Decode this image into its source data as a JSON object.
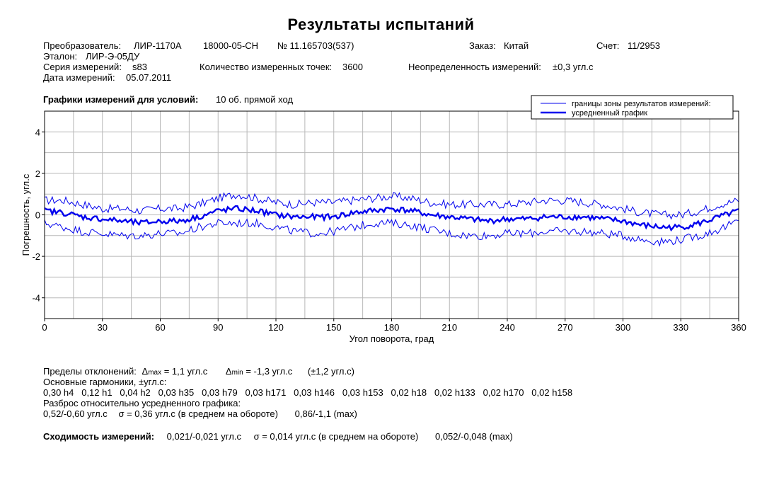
{
  "header": {
    "title": "Результаты испытаний",
    "converter_label": "Преобразователь:",
    "converter_model": "ЛИР-1170А",
    "converter_code": "18000-05-СН",
    "converter_number": "№ 11.165703(537)",
    "order_label": "Заказ:",
    "order_value": "Китай",
    "account_label": "Счет:",
    "account_value": "11/2953",
    "reference_label": "Эталон:",
    "reference_value": "ЛИР-Э-05ДУ",
    "series_label": "Серия измерений:",
    "series_value": "s83",
    "points_label": "Количество измеренных точек:",
    "points_value": "3600",
    "uncertainty_label": "Неопределенность измерений:",
    "uncertainty_value": "±0,3 угл.с",
    "date_label": "Дата измерений:",
    "date_value": "05.07.2011"
  },
  "conditions": {
    "label": "Графики измерений для условий:",
    "value": "10 об. прямой ход"
  },
  "chart_data": {
    "type": "line",
    "xlabel": "Угол поворота, град",
    "ylabel": "Погрешность, угл.с",
    "xlim": [
      0,
      360
    ],
    "ylim": [
      -5,
      5
    ],
    "xticks": [
      0,
      30,
      60,
      90,
      120,
      150,
      180,
      210,
      240,
      270,
      300,
      330,
      360
    ],
    "yticks": [
      4,
      2,
      0,
      -2,
      -4
    ],
    "grid": true,
    "legend_position": "top-right",
    "x": [
      0,
      10,
      20,
      30,
      40,
      50,
      60,
      70,
      80,
      90,
      100,
      110,
      120,
      130,
      140,
      150,
      160,
      170,
      180,
      190,
      200,
      210,
      220,
      230,
      240,
      250,
      260,
      270,
      280,
      290,
      300,
      310,
      320,
      330,
      340,
      350,
      360
    ],
    "series": [
      {
        "name": "границы зоны результатов измерений:",
        "style": "thin",
        "values": [
          0.7,
          0.7,
          0.5,
          0.3,
          0.3,
          0.2,
          0.3,
          0.3,
          0.5,
          0.8,
          1.0,
          0.8,
          0.6,
          0.5,
          0.6,
          0.6,
          0.7,
          0.8,
          0.9,
          0.8,
          0.6,
          0.5,
          0.5,
          0.5,
          0.5,
          0.6,
          0.7,
          0.7,
          0.6,
          0.5,
          0.3,
          0.1,
          0.0,
          0.0,
          0.2,
          0.5,
          0.7
        ]
      },
      {
        "name": "",
        "style": "thin",
        "values": [
          -0.4,
          -0.6,
          -0.8,
          -0.9,
          -1.0,
          -1.0,
          -0.9,
          -0.9,
          -0.6,
          -0.4,
          -0.4,
          -0.4,
          -0.6,
          -0.8,
          -0.9,
          -0.8,
          -0.6,
          -0.4,
          -0.4,
          -0.5,
          -0.7,
          -0.9,
          -1.0,
          -1.0,
          -0.9,
          -0.9,
          -0.8,
          -0.8,
          -0.8,
          -0.9,
          -1.0,
          -1.2,
          -1.3,
          -1.2,
          -1.0,
          -0.7,
          -0.3
        ]
      },
      {
        "name": "усредненный график",
        "style": "thick",
        "values": [
          0.2,
          0.1,
          -0.1,
          -0.2,
          -0.3,
          -0.4,
          -0.3,
          -0.3,
          -0.1,
          0.2,
          0.3,
          0.2,
          0.0,
          -0.1,
          -0.1,
          -0.1,
          0.1,
          0.2,
          0.3,
          0.2,
          0.0,
          -0.1,
          -0.2,
          -0.3,
          -0.2,
          -0.2,
          -0.1,
          -0.1,
          -0.1,
          -0.2,
          -0.3,
          -0.5,
          -0.6,
          -0.6,
          -0.4,
          -0.1,
          0.2
        ]
      }
    ],
    "colors": {
      "series": "#0000ee",
      "grid": "#b8b8b8",
      "axis": "#000000"
    }
  },
  "stats": {
    "limits_label": "Пределы отклонений:",
    "delta_max_sym": "Δ",
    "delta_max_sub": "max",
    "delta_max_value": "= 1,1  угл.с",
    "delta_min_sym": "Δ",
    "delta_min_sub": "min",
    "delta_min_value": "= -1,3 угл.с",
    "limits_total": "(±1,2 угл.с)",
    "harmonics_label": "Основные гармоники, ±угл.с:",
    "harmonics_list": "0,30 h4   0,12 h1   0,04 h2   0,03 h35   0,03 h79   0,03 h171   0,03 h146   0,03 h153   0,02 h18   0,02 h133   0,02 h170   0,02 h158",
    "spread_label": "Разброс относительно усредненного графика:",
    "spread_range": "0,52/-0,60 угл.с",
    "spread_sigma": "σ = 0,36 угл.с  (в среднем на обороте)",
    "spread_max": "0,86/-1,1  (max)",
    "convergence_label": "Сходимость измерений:",
    "convergence_range": "0,021/-0,021 угл.с",
    "convergence_sigma": "σ = 0,014 угл.с  (в среднем на обороте)",
    "convergence_max": "0,052/-0,048  (max)"
  }
}
